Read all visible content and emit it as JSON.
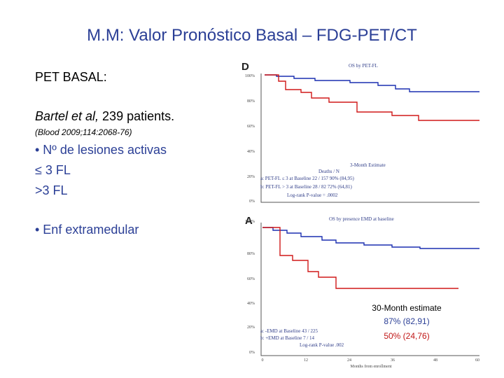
{
  "title": "M.M: Valor Pronóstico Basal – FDG-PET/CT",
  "left": {
    "heading": "PET BASAL:",
    "study_author": "Bartel et al,",
    "study_size": " 239 patients.",
    "citation": "(Blood 2009;114:2068-76)",
    "items": [
      "• Nº de lesiones activas",
      "≤ 3 FL",
      ">3 FL",
      "• Enf extramedular"
    ]
  },
  "figures": [
    {
      "label": "D",
      "title": "OS by PET-FL",
      "y_ticks": [
        "100%",
        "80%",
        "60%",
        "40%",
        "20%",
        "0%"
      ],
      "legend": {
        "estimate_header": "3-Month Estimate",
        "deaths_header": "Deaths / N",
        "rows": [
          "a: PET-FL ≤ 3 at Baseline   22 / 157   90% (84,95)",
          "b: PET-FL > 3 at Baseline   28 / 82   72% (64,81)"
        ],
        "p_value": "Log-rank P-value = .0002"
      }
    },
    {
      "label": "A",
      "title": "OS by presence EMD at baseline",
      "y_ticks": [
        "100%",
        "80%",
        "60%",
        "40%",
        "20%",
        "0%"
      ],
      "x_ticks": [
        "0",
        "12",
        "24",
        "36",
        "48",
        "60"
      ],
      "x_label": "Months from enrollment",
      "legend": {
        "rows": [
          "a: -EMD at Baseline   43 / 225",
          "b: +EMD at Baseline   7 / 14"
        ],
        "p_value": "Log-rank P-value .002"
      },
      "overlay": {
        "title": "30-Month estimate",
        "rows": [
          "87% (82,91)",
          "50% (24,76)"
        ]
      }
    }
  ]
}
